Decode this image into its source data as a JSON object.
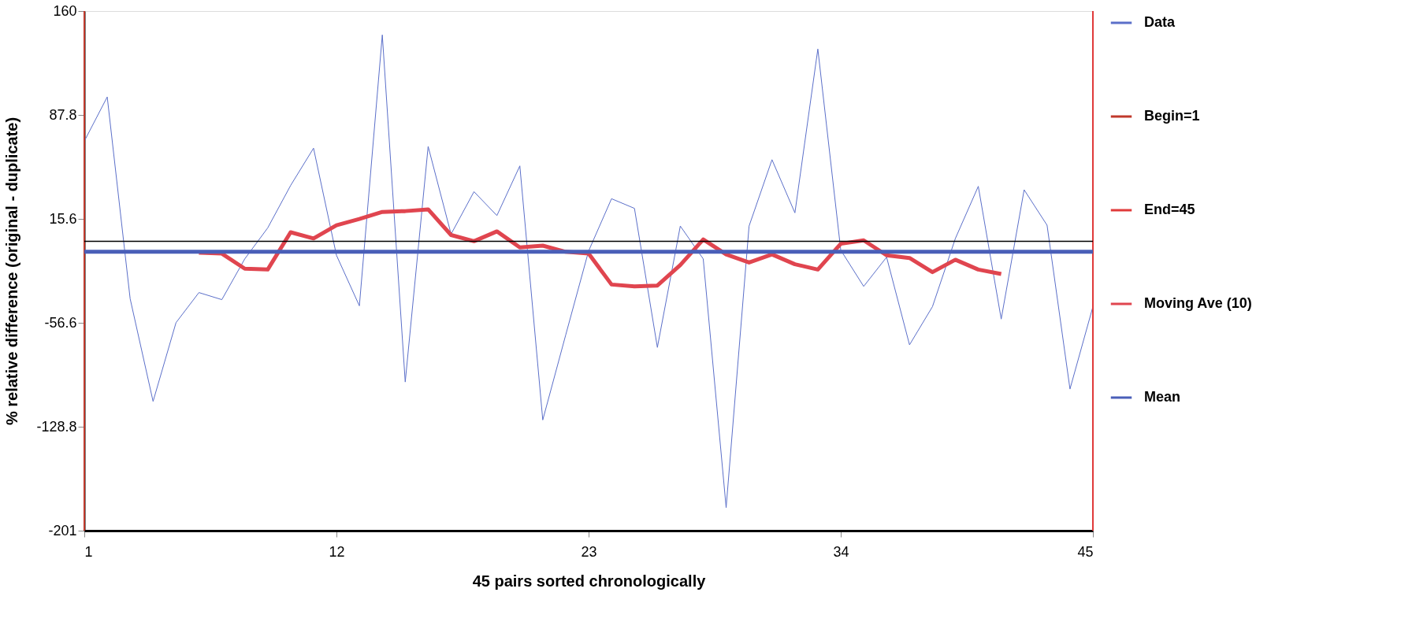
{
  "chart_data": {
    "type": "line",
    "xlabel": "45 pairs sorted chronologically",
    "ylabel": "% relative difference (original - duplicate)",
    "x": [
      1,
      2,
      3,
      4,
      5,
      6,
      7,
      8,
      9,
      10,
      11,
      12,
      13,
      14,
      15,
      16,
      17,
      18,
      19,
      20,
      21,
      22,
      23,
      24,
      25,
      26,
      27,
      28,
      29,
      30,
      31,
      32,
      33,
      34,
      35,
      36,
      37,
      38,
      39,
      40,
      41,
      42,
      43,
      44,
      45
    ],
    "series": [
      {
        "name": "Data",
        "color": "#5b6fc9",
        "values": [
          69.6,
          100.3,
          -39.9,
          -111.2,
          -56.5,
          -35.6,
          -40.5,
          -12.2,
          9.3,
          38.8,
          64.7,
          -9.7,
          -44.8,
          143.4,
          -97.7,
          65.9,
          5.0,
          34.5,
          17.9,
          52.4,
          -124.1,
          -65.1,
          -6.7,
          29.6,
          22.9,
          -73.7,
          10.6,
          -12.2,
          -185.0,
          10.6,
          56.7,
          19.8,
          133.6,
          -6.1,
          -31.3,
          -11.0,
          -71.9,
          -45.4,
          2.0,
          38.2,
          -54.0,
          35.8,
          11.2,
          -102.6,
          -45.4
        ]
      },
      {
        "name": "Begin=1",
        "color": "#c0392b",
        "x": [
          1,
          1
        ],
        "values": [
          -201,
          160
        ]
      },
      {
        "name": "End=45",
        "color": "#e03a3a",
        "x": [
          45,
          45
        ],
        "values": [
          -201,
          160
        ]
      },
      {
        "name": "Moving Ave (10)",
        "color": "#e0454f",
        "x": [
          6,
          7,
          8,
          9,
          10,
          11,
          12,
          13,
          14,
          15,
          16,
          17,
          18,
          19,
          20,
          21,
          22,
          23,
          24,
          25,
          26,
          27,
          28,
          29,
          30,
          31,
          32,
          33,
          34,
          35,
          36,
          37,
          38,
          39,
          40,
          41
        ],
        "values": [
          -7.9,
          -8.5,
          -19.0,
          -19.6,
          6.3,
          2.0,
          11.2,
          15.5,
          20.4,
          21.0,
          22.2,
          4.4,
          0.1,
          6.9,
          -4.2,
          -3.0,
          -7.3,
          -8.5,
          -30.0,
          -31.3,
          -30.7,
          -16.5,
          1.3,
          -9.1,
          -14.7,
          -9.1,
          -15.9,
          -19.6,
          -1.7,
          0.7,
          -9.7,
          -11.6,
          -21.4,
          -12.8,
          -19.6,
          -22.7
        ]
      },
      {
        "name": "Mean",
        "color": "#4a5fb8",
        "x": [
          1,
          45
        ],
        "values": [
          -7.3,
          -7.3
        ]
      }
    ],
    "xlim": [
      1,
      45
    ],
    "xticks": [
      1,
      12,
      23,
      34,
      45
    ],
    "ylim": [
      -201,
      160
    ],
    "yticks": [
      -201,
      -128.8,
      -56.6,
      15.6,
      87.8,
      160
    ],
    "ref_lines": [
      {
        "axis": "y",
        "value": 0,
        "color": "#000000"
      }
    ],
    "grid": false,
    "legend": "right",
    "marker": "none",
    "line_style": "solid"
  }
}
